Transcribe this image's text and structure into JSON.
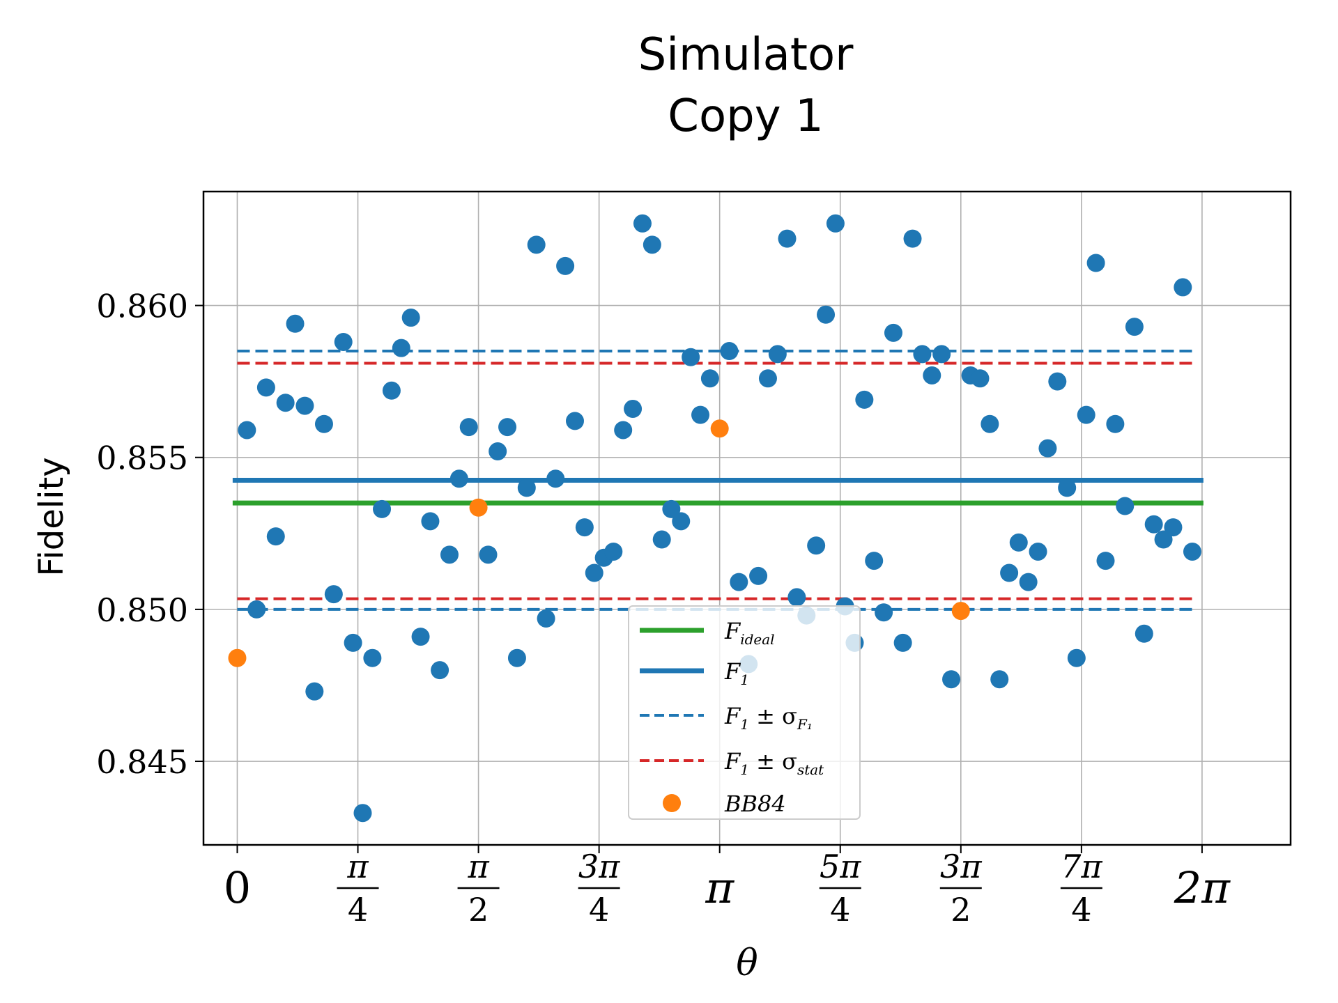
{
  "chart_data": {
    "type": "scatter",
    "title": [
      "Simulator",
      "Copy 1"
    ],
    "xlabel": "θ",
    "ylabel": "Fidelity",
    "xlim": [
      -0.22,
      6.86
    ],
    "ylim": [
      0.84225,
      0.86375
    ],
    "grid": true,
    "legend_position": "bottom-center",
    "x_ticks": [
      {
        "value": 0,
        "num": "0",
        "den": ""
      },
      {
        "value": 0.7854,
        "num": "π",
        "den": "4"
      },
      {
        "value": 1.5708,
        "num": "π",
        "den": "2"
      },
      {
        "value": 2.3562,
        "num": "3π",
        "den": "4"
      },
      {
        "value": 3.1416,
        "num": "π",
        "den": ""
      },
      {
        "value": 3.927,
        "num": "5π",
        "den": "4"
      },
      {
        "value": 4.7124,
        "num": "3π",
        "den": "2"
      },
      {
        "value": 5.4978,
        "num": "7π",
        "den": "4"
      },
      {
        "value": 6.2832,
        "num": "2π",
        "den": ""
      }
    ],
    "y_ticks": [
      {
        "value": 0.845,
        "label": "0.845"
      },
      {
        "value": 0.85,
        "label": "0.850"
      },
      {
        "value": 0.855,
        "label": "0.855"
      },
      {
        "value": 0.86,
        "label": "0.860"
      }
    ],
    "lines": [
      {
        "name": "F_ideal",
        "label_main": "F",
        "label_sub": "ideal",
        "label_rest": "",
        "y": 0.8535,
        "x_range": [
          -0.03,
          7.54
        ],
        "color": "#2ca02c",
        "style": "solid",
        "width": 7
      },
      {
        "name": "F_1",
        "label_main": "F",
        "label_sub": "1",
        "label_rest": "",
        "y": 0.85425,
        "x_range": [
          -0.03,
          7.54
        ],
        "color": "#1f77b4",
        "style": "solid",
        "width": 7
      },
      {
        "name": "F_1 ± σ_F1",
        "label_main": "F",
        "label_sub": "1",
        "label_rest": " ± σ",
        "label_sub2": "F₁",
        "y": [
          0.8585,
          0.85
        ],
        "x_range": [
          0.0,
          7.49
        ],
        "color": "#1f77b4",
        "style": "dashed",
        "width": 4
      },
      {
        "name": "F_1 ± σ_stat",
        "label_main": "F",
        "label_sub": "1",
        "label_rest": " ± σ",
        "label_sub2": "stat",
        "y": [
          0.8581,
          0.85035
        ],
        "x_range": [
          0.0,
          7.49
        ],
        "color": "#d62728",
        "style": "dashed",
        "width": 4
      }
    ],
    "series": [
      {
        "name": "BB84",
        "color": "#ff7f0e",
        "points": [
          [
            0.0,
            0.8484
          ],
          [
            1.5708,
            0.85335
          ],
          [
            3.1416,
            0.85595
          ],
          [
            4.7124,
            0.84995
          ]
        ]
      },
      {
        "name": "",
        "color": "#1f77b4",
        "points": [
          [
            0.063,
            0.8559
          ],
          [
            0.126,
            0.85
          ],
          [
            0.188,
            0.8573
          ],
          [
            0.251,
            0.8524
          ],
          [
            0.314,
            0.8568
          ],
          [
            0.377,
            0.8594
          ],
          [
            0.44,
            0.8567
          ],
          [
            0.503,
            0.8473
          ],
          [
            0.565,
            0.8561
          ],
          [
            0.628,
            0.8505
          ],
          [
            0.691,
            0.8588
          ],
          [
            0.754,
            0.8489
          ],
          [
            0.817,
            0.8433
          ],
          [
            0.88,
            0.8484
          ],
          [
            0.942,
            0.8533
          ],
          [
            1.005,
            0.8572
          ],
          [
            1.068,
            0.8586
          ],
          [
            1.131,
            0.8596
          ],
          [
            1.194,
            0.8491
          ],
          [
            1.257,
            0.8529
          ],
          [
            1.319,
            0.848
          ],
          [
            1.382,
            0.8518
          ],
          [
            1.445,
            0.8543
          ],
          [
            1.508,
            0.856
          ],
          [
            1.634,
            0.8518
          ],
          [
            1.696,
            0.8552
          ],
          [
            1.759,
            0.856
          ],
          [
            1.822,
            0.8484
          ],
          [
            1.885,
            0.854
          ],
          [
            1.948,
            0.862
          ],
          [
            2.011,
            0.8497
          ],
          [
            2.073,
            0.8543
          ],
          [
            2.136,
            0.8613
          ],
          [
            2.199,
            0.8562
          ],
          [
            2.262,
            0.8527
          ],
          [
            2.325,
            0.8512
          ],
          [
            2.388,
            0.8517
          ],
          [
            2.45,
            0.8519
          ],
          [
            2.513,
            0.8559
          ],
          [
            2.576,
            0.8566
          ],
          [
            2.639,
            0.8627
          ],
          [
            2.702,
            0.862
          ],
          [
            2.765,
            0.8523
          ],
          [
            2.827,
            0.8533
          ],
          [
            2.89,
            0.8529
          ],
          [
            2.953,
            0.8583
          ],
          [
            3.016,
            0.8564
          ],
          [
            3.079,
            0.8576
          ],
          [
            3.204,
            0.8585
          ],
          [
            3.267,
            0.8509
          ],
          [
            3.33,
            0.8482
          ],
          [
            3.393,
            0.8511
          ],
          [
            3.456,
            0.8576
          ],
          [
            3.519,
            0.8584
          ],
          [
            3.581,
            0.8622
          ],
          [
            3.644,
            0.8504
          ],
          [
            3.707,
            0.8498
          ],
          [
            3.77,
            0.8521
          ],
          [
            3.833,
            0.8597
          ],
          [
            3.896,
            0.8627
          ],
          [
            3.958,
            0.8501
          ],
          [
            4.021,
            0.8489
          ],
          [
            4.084,
            0.8569
          ],
          [
            4.147,
            0.8516
          ],
          [
            4.21,
            0.8499
          ],
          [
            4.273,
            0.8591
          ],
          [
            4.335,
            0.8489
          ],
          [
            4.398,
            0.8622
          ],
          [
            4.461,
            0.8584
          ],
          [
            4.524,
            0.8577
          ],
          [
            4.587,
            0.8584
          ],
          [
            4.65,
            0.8477
          ],
          [
            4.775,
            0.8577
          ],
          [
            4.838,
            0.8576
          ],
          [
            4.901,
            0.8561
          ],
          [
            4.964,
            0.8477
          ],
          [
            5.027,
            0.8512
          ],
          [
            5.089,
            0.8522
          ],
          [
            5.152,
            0.8509
          ],
          [
            5.215,
            0.8519
          ],
          [
            5.278,
            0.8553
          ],
          [
            5.341,
            0.8575
          ],
          [
            5.404,
            0.854
          ],
          [
            5.466,
            0.8484
          ],
          [
            5.529,
            0.8564
          ],
          [
            5.592,
            0.8614
          ],
          [
            5.655,
            0.8516
          ],
          [
            5.718,
            0.8561
          ],
          [
            5.781,
            0.8534
          ],
          [
            5.843,
            0.8593
          ],
          [
            5.906,
            0.8492
          ],
          [
            5.969,
            0.8528
          ],
          [
            6.032,
            0.8523
          ],
          [
            6.095,
            0.8527
          ],
          [
            6.158,
            0.8606
          ],
          [
            6.22,
            0.8519
          ]
        ]
      }
    ]
  }
}
